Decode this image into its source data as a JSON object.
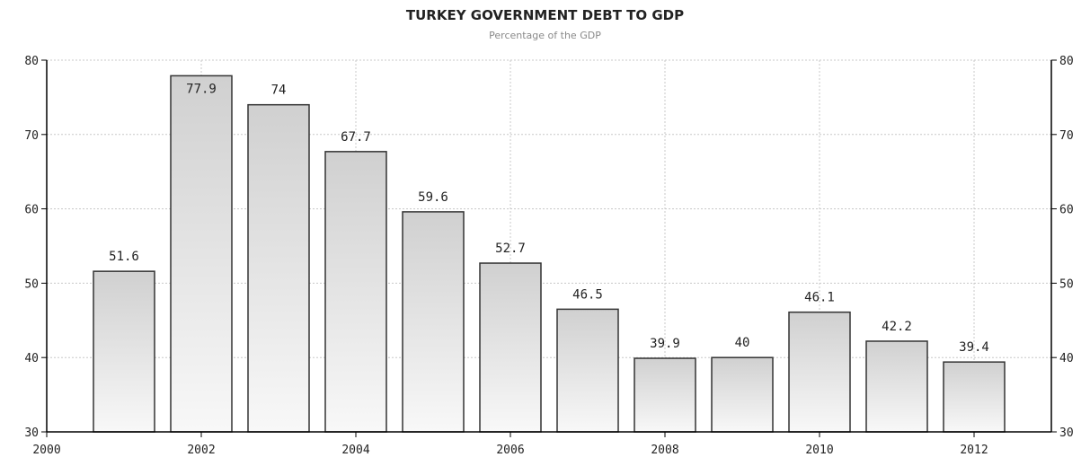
{
  "chart_data": {
    "type": "bar",
    "title": "TURKEY GOVERNMENT DEBT TO GDP",
    "subtitle": "Percentage of the GDP",
    "categories": [
      "2001",
      "2002",
      "2003",
      "2004",
      "2005",
      "2006",
      "2007",
      "2008",
      "2009",
      "2010",
      "2011",
      "2012"
    ],
    "values": [
      51.6,
      77.9,
      74,
      67.7,
      59.6,
      52.7,
      46.5,
      39.9,
      40,
      46.1,
      42.2,
      39.4
    ],
    "data_labels": [
      "51.6",
      "77.9",
      "74",
      "67.7",
      "59.6",
      "52.7",
      "46.5",
      "39.9",
      "40",
      "46.1",
      "42.2",
      "39.4"
    ],
    "xlim": [
      2000,
      2013
    ],
    "ylim": [
      30,
      80
    ],
    "x_ticks": [
      2000,
      2002,
      2004,
      2006,
      2008,
      2010,
      2012
    ],
    "y_ticks": [
      30,
      40,
      50,
      60,
      70,
      80
    ],
    "y_axis_sides": [
      "left",
      "right"
    ],
    "grid": true,
    "legend": "none",
    "bar_fill_top": "#d0d0d0",
    "bar_fill_bottom": "#f8f8f8",
    "bar_stroke": "#333333"
  }
}
